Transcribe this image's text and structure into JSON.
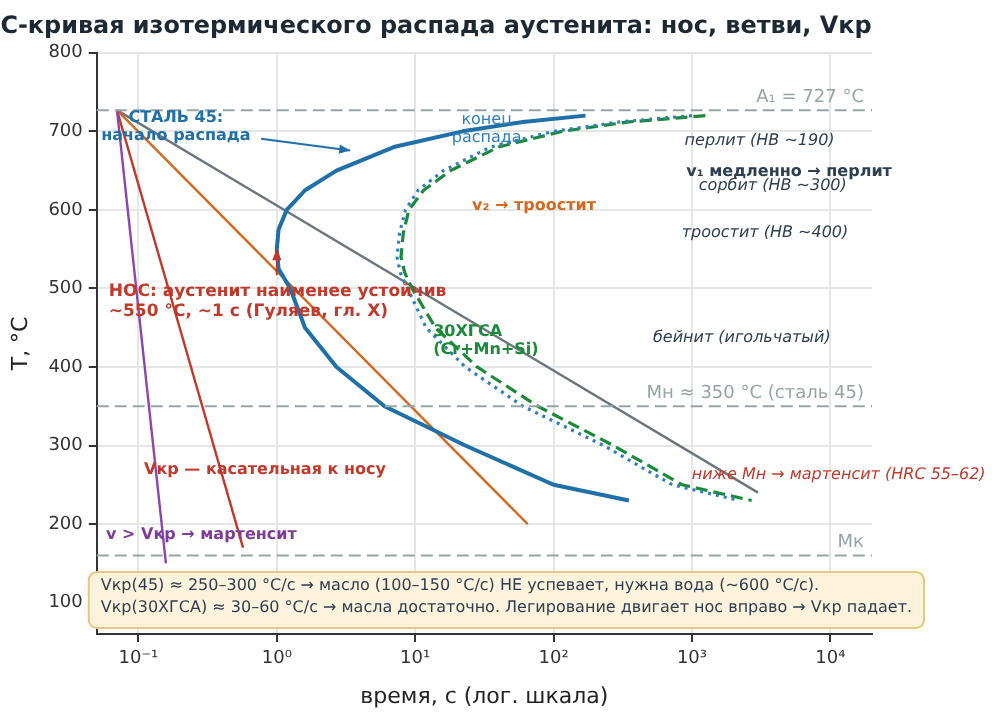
{
  "chart_data": {
    "type": "line",
    "title": "С-кривая изотермического распада аустенита: нос, ветви, Vкр",
    "xlabel": "время, с (лог. шкала)",
    "ylabel": "T, °C",
    "log": "x",
    "grid": true,
    "legend": false,
    "marker": "none",
    "xlim": [
      0.05,
      20000
    ],
    "ylim": [
      60,
      800
    ],
    "xticks": [
      {
        "value": 0.1,
        "label": "10⁻¹"
      },
      {
        "value": 1,
        "label": "10⁰"
      },
      {
        "value": 10,
        "label": "10¹"
      },
      {
        "value": 100,
        "label": "10²"
      },
      {
        "value": 1000,
        "label": "10³"
      },
      {
        "value": 10000,
        "label": "10⁴"
      }
    ],
    "yticks": [
      100,
      200,
      300,
      400,
      500,
      600,
      700,
      800
    ],
    "series": [
      {
        "color": "#1f6fa8",
        "line_style": "solid",
        "x": [
          170,
          60,
          22,
          7,
          2.7,
          1.6,
          1.18,
          1.03,
          1,
          1.03,
          1.25,
          1.6,
          2.7,
          6,
          23,
          100,
          350
        ],
        "values": [
          720,
          712,
          700,
          680,
          650,
          625,
          600,
          575,
          550,
          525,
          500,
          450,
          400,
          350,
          300,
          250,
          230
        ]
      },
      {
        "color": "#2e7fc0",
        "line_style": "dotted",
        "x": [
          1000,
          300,
          100,
          35,
          16,
          10.5,
          8.5,
          7.7,
          7.4,
          7.8,
          8.8,
          12,
          23,
          60,
          230,
          720,
          2200
        ],
        "values": [
          720,
          712,
          700,
          680,
          650,
          625,
          600,
          570,
          540,
          520,
          500,
          450,
          400,
          350,
          300,
          250,
          230
        ]
      },
      {
        "color": "#1a8a3a",
        "line_style": "dashed",
        "x": [
          1250,
          350,
          115,
          40,
          18,
          11.5,
          9,
          8.2,
          7.9,
          8.4,
          9.5,
          14,
          28,
          77,
          270,
          850,
          2700
        ],
        "values": [
          720,
          712,
          700,
          680,
          650,
          625,
          600,
          570,
          540,
          520,
          500,
          450,
          400,
          350,
          300,
          250,
          230
        ]
      },
      {
        "color": "#8e44ad",
        "line_style": "solid",
        "x": [
          0.07,
          0.158
        ],
        "values": [
          727,
          150
        ]
      },
      {
        "color": "#c0392b",
        "line_style": "solid",
        "x": [
          0.07,
          0.57
        ],
        "values": [
          727,
          170
        ]
      },
      {
        "color": "#d2691e",
        "line_style": "solid",
        "x": [
          0.07,
          65
        ],
        "values": [
          727,
          200
        ]
      },
      {
        "color": "#6c757d",
        "line_style": "solid",
        "x": [
          0.07,
          3000
        ],
        "values": [
          727,
          240
        ]
      }
    ],
    "ref_lines": [
      {
        "axis": "y",
        "value": 727,
        "label": "A₁ = 727 °C",
        "color": "#95a5a6",
        "line_style": "dashed"
      },
      {
        "axis": "y",
        "value": 350,
        "label": "Mн ≈ 350 °C (сталь 45)",
        "color": "#95a5a6",
        "line_style": "dashed"
      },
      {
        "axis": "y",
        "value": 160,
        "label": "Mк",
        "color": "#95a5a6",
        "line_style": "dashed"
      }
    ],
    "annotations": [
      "СТАЛЬ 45:\nначало распада",
      "конец\nраспада",
      "перлит (НВ ~190)",
      "v₁ медленно → перлит",
      "сорбит (НВ ~300)",
      "v₂ → троостит",
      "троостит (НВ ~400)",
      {
        "text": "НОС: аустенит наименее устойчив\n~550 °C, ~1 с (Гуляев, гл. X)",
        "x": 1,
        "y": 550
      },
      "30ХГСА\n(Cr+Mn+Si)",
      "бейнит (игольчатый)",
      "ниже Mн → мартенсит (HRC 55–62)",
      "Vкр — касательная к носу",
      "v > Vкр → мартенсит",
      "Vкр(45) ≈ 250–300 °C/с → масло (100–150 °C/с) НЕ успевает, нужна вода (~600 °C/с).\nVкр(30ХГСА) ≈ 30–60 °C/с → масла достаточно. Легирование двигает нос вправо → Vкр падает."
    ]
  }
}
